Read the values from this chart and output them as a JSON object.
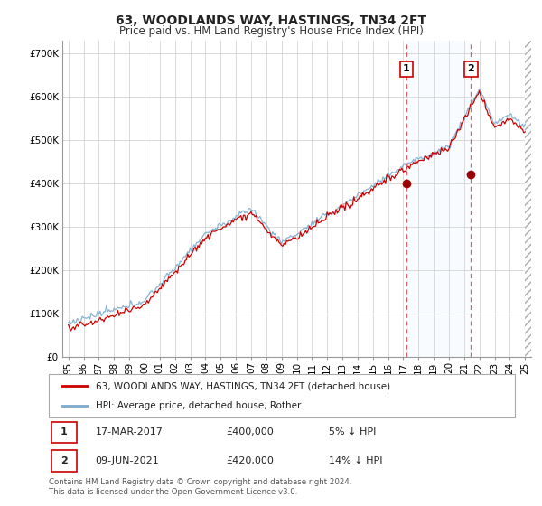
{
  "title": "63, WOODLANDS WAY, HASTINGS, TN34 2FT",
  "subtitle": "Price paid vs. HM Land Registry's House Price Index (HPI)",
  "ylabel_ticks": [
    "£0",
    "£100K",
    "£200K",
    "£300K",
    "£400K",
    "£500K",
    "£600K",
    "£700K"
  ],
  "ytick_values": [
    0,
    100000,
    200000,
    300000,
    400000,
    500000,
    600000,
    700000
  ],
  "ylim": [
    0,
    730000
  ],
  "xlim_start": 1994.6,
  "xlim_end": 2025.4,
  "purchase1_x": 2017.2,
  "purchase1_y": 400000,
  "purchase1_label": "1",
  "purchase2_x": 2021.45,
  "purchase2_y": 420000,
  "purchase2_label": "2",
  "red_color": "#cc0000",
  "blue_color": "#7aabcc",
  "vline_color": "#cc6666",
  "marker_color": "#990000",
  "grid_color": "#cccccc",
  "bg_color": "#ffffff",
  "shade_color": "#ddeeff",
  "legend_line1": "63, WOODLANDS WAY, HASTINGS, TN34 2FT (detached house)",
  "legend_line2": "HPI: Average price, detached house, Rother",
  "table_row1": [
    "1",
    "17-MAR-2017",
    "£400,000",
    "5% ↓ HPI"
  ],
  "table_row2": [
    "2",
    "09-JUN-2021",
    "£420,000",
    "14% ↓ HPI"
  ],
  "footnote": "Contains HM Land Registry data © Crown copyright and database right 2024.\nThis data is licensed under the Open Government Licence v3.0.",
  "title_fontsize": 10,
  "subtitle_fontsize": 8.5,
  "tick_fontsize": 7.5,
  "legend_fontsize": 7.5,
  "table_fontsize": 8
}
